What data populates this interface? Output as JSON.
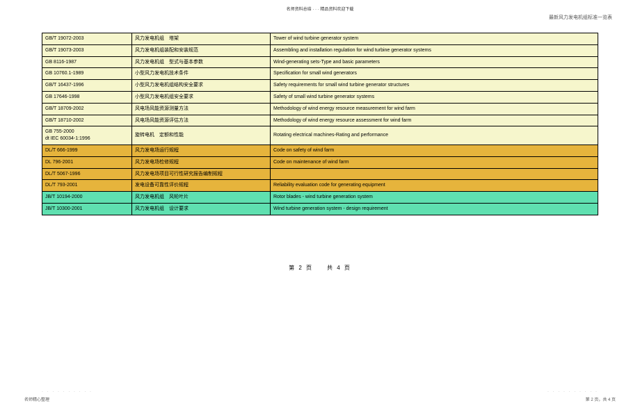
{
  "header": {
    "center": "名师资料总结 · · · 精品资料欢迎下载",
    "right_faded": "最新风力发电机组标准一览表"
  },
  "colors": {
    "yellow": "#f6f6cc",
    "orange": "#e6b43c",
    "green": "#5fe0b0",
    "border": "#000000",
    "text": "#000000"
  },
  "rows": [
    {
      "cls": "bg-yellow",
      "code": "GB/T 19072-2003",
      "ch": "风力发电机组　塔架",
      "en": "Tower of wind turbine generator system"
    },
    {
      "cls": "bg-yellow",
      "code": "GB/T 19073-2003",
      "ch": "风力发电机组装配和安装规范",
      "en": "Assembling and installation regulation for wind turbine generator systems"
    },
    {
      "cls": "bg-yellow",
      "code": "GB 8116-1987",
      "ch": "风力发电机组　型式与基本参数",
      "en": "Wind-generating sets-Type and basic parameters"
    },
    {
      "cls": "bg-yellow",
      "code": "GB 10760.1-1989",
      "ch": "小型风力发电机技术条件",
      "en": "Specification for small wind generators"
    },
    {
      "cls": "bg-yellow",
      "code": "GB/T 16437-1996",
      "ch": "小型风力发电机组结构安全要求",
      "en": "Safety requirements for small wind turbine generator structures"
    },
    {
      "cls": "bg-yellow",
      "code": "GB 17646-1998",
      "ch": "小型风力发电机组安全要求",
      "en": "Safety of small wind turbine generator systems"
    },
    {
      "cls": "bg-yellow",
      "code": "GB/T 18709-2002",
      "ch": "风电场风能资源测量方法",
      "en": "Methodology of wind energy resource measurement for wind farm"
    },
    {
      "cls": "bg-yellow",
      "code": "GB/T 18710-2002",
      "ch": "风电场风能资源评估方法",
      "en": "Methodology of wind energy resource assessment for wind farm"
    },
    {
      "cls": "bg-yellow",
      "code": "GB 755-2000\ndt IEC 60034-1:1996",
      "ch": "旋转电机　定额和性能",
      "en": "Rotating electrical machines-Rating and performance"
    },
    {
      "cls": "bg-orange",
      "code": "DL/T 666-1999",
      "ch": "风力发电场运行规程",
      "en": "Code on safety of wind farm"
    },
    {
      "cls": "bg-orange",
      "code": "DL 796-2001",
      "ch": "风力发电场检修规程",
      "en": "Code on maintenance of wind farm"
    },
    {
      "cls": "bg-orange",
      "code": "DL/T 5067-1996",
      "ch": "风力发电场项目可行性研究报告编制规程",
      "en": ""
    },
    {
      "cls": "bg-orange",
      "code": "DL/T 793-2001",
      "ch": "发电设备可靠性评价规程",
      "en": "Reliability evaluation code for generating equipment"
    },
    {
      "cls": "bg-green",
      "code": "JB/T 10194-2000",
      "ch": "风力发电机组　风轮叶片",
      "en": "Rotor blades - wind turbine generation system"
    },
    {
      "cls": "bg-green",
      "code": "JB/T 10300-2001",
      "ch": "风力发电机组　设计要求",
      "en": "Wind turbine generation system - design requirement"
    }
  ],
  "page": {
    "center": "第 2 页　　共 4 页",
    "footer_left": "名师精心整理",
    "footer_right": "第 2 页，共 4 页"
  }
}
